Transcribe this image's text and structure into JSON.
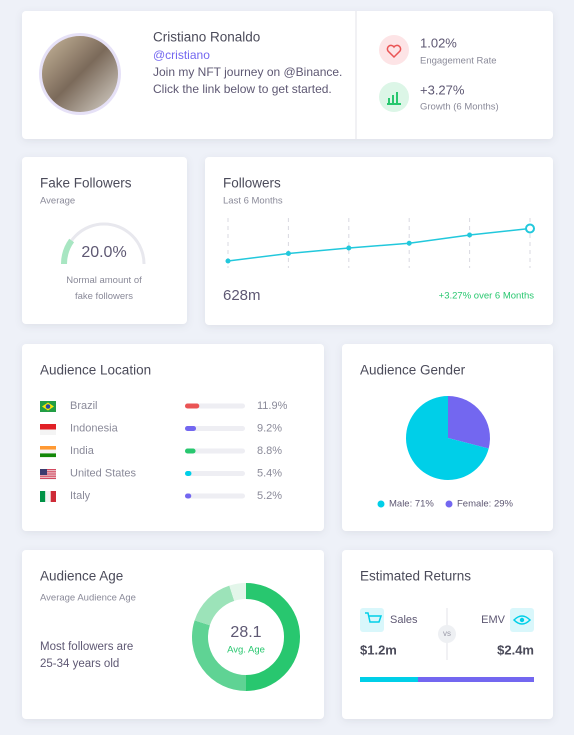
{
  "profile": {
    "name": "Cristiano Ronaldo",
    "handle": "@cristiano",
    "bio": "Join my NFT journey on @Binance. Click the link below to get started."
  },
  "stats": [
    {
      "value": "1.02%",
      "label": "Engagement Rate"
    },
    {
      "value": "+3.27%",
      "label": "Growth (6 Months)"
    }
  ],
  "fake_followers": {
    "title": "Fake Followers",
    "subtitle": "Average",
    "gauge": {
      "value": 20,
      "label": "20.0%",
      "range": [
        0,
        100
      ]
    },
    "note": "Normal amount of fake followers"
  },
  "followers": {
    "title": "Followers",
    "subtitle": "Last 6 Months",
    "total": "628m",
    "change": "+3.27% over 6 Months",
    "chart_data": {
      "type": "line",
      "values": [
        608,
        612.6,
        616,
        618.9,
        624,
        628
      ],
      "color": "#22c8dc",
      "ylim": [
        600,
        632
      ]
    }
  },
  "location": {
    "title": "Audience Location",
    "xlim": [
      0,
      50
    ],
    "items": [
      {
        "name": "Brazil",
        "value": 11.9,
        "label": "11.9%",
        "color": "#ea5455"
      },
      {
        "name": "Indonesia",
        "value": 9.2,
        "label": "9.2%",
        "color": "#7367f0"
      },
      {
        "name": "India",
        "value": 8.8,
        "label": "8.8%",
        "color": "#28c76f"
      },
      {
        "name": "United States",
        "value": 5.4,
        "label": "5.4%",
        "color": "#00cfe8"
      },
      {
        "name": "Italy",
        "value": 5.2,
        "label": "5.2%",
        "color": "#7367f0"
      }
    ]
  },
  "gender": {
    "title": "Audience Gender",
    "chart_data": {
      "type": "pie",
      "values": [
        71,
        29
      ],
      "value_labels": [
        "Male: 71%",
        "Female: 29%"
      ],
      "colors": [
        "#00cfe8",
        "#7367f0"
      ]
    }
  },
  "age": {
    "title": "Audience Age",
    "subtitle": "Average Audience Age",
    "note": "Most followers are 25-34 years old",
    "average": 28.1,
    "average_label": "Avg. Age",
    "chart_data": {
      "type": "donut",
      "values": [
        50,
        30,
        15,
        5
      ],
      "colors": [
        "#28c76f",
        "#5fd394",
        "#9ce3b9",
        "#e3f6ea"
      ]
    }
  },
  "returns": {
    "title": "Estimated Returns",
    "vs": "vs",
    "items": [
      {
        "name": "Sales",
        "value": 1200000,
        "label": "$1.2m",
        "color": "#00cfe8"
      },
      {
        "name": "EMV",
        "value": 2400000,
        "label": "$2.4m",
        "color": "#7367f0"
      }
    ]
  }
}
